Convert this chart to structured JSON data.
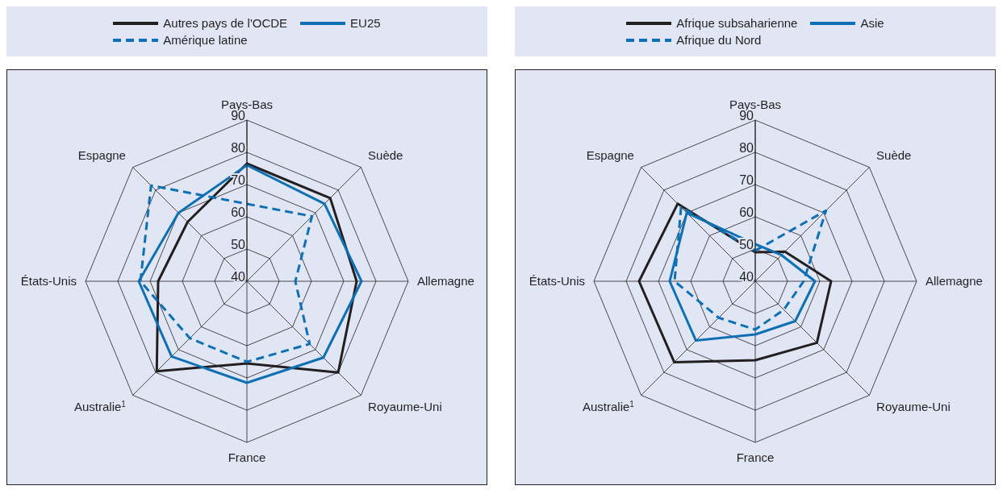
{
  "chart_data": [
    {
      "type": "radar",
      "categories": [
        "Pays-Bas",
        "Suède",
        "Allemagne",
        "Royaume-Uni",
        "France",
        "Australie$^{1}$",
        "États-Unis",
        "Espagne"
      ],
      "ylim": [
        40,
        90
      ],
      "yticks": [
        40,
        50,
        60,
        70,
        80,
        90
      ],
      "grid": true,
      "legend": "top",
      "series": [
        {
          "name": "Autres pays de l'OCDE",
          "color": "#231f20",
          "line_style": "solid",
          "values": [
            76.5,
            76.5,
            74,
            80,
            65.5,
            79.5,
            67.5,
            66
          ]
        },
        {
          "name": "EU25",
          "color": "#0f6fb5",
          "line_style": "solid",
          "values": [
            76,
            74,
            75.5,
            73.5,
            71.5,
            73,
            73.5,
            70
          ]
        },
        {
          "name": "Amérique latine",
          "color": "#0f6fb5",
          "line_style": "dashed",
          "values": [
            64,
            68.5,
            55,
            67.5,
            65,
            65,
            73,
            82
          ]
        }
      ]
    },
    {
      "type": "radar",
      "categories": [
        "Pays-Bas",
        "Suède",
        "Allemagne",
        "Royaume-Uni",
        "France",
        "Australie$^{1}$",
        "États-Unis",
        "Espagne"
      ],
      "ylim": [
        40,
        90
      ],
      "yticks": [
        40,
        50,
        60,
        70,
        80,
        90
      ],
      "grid": true,
      "legend": "top",
      "series": [
        {
          "name": "Afrique subsaharienne",
          "color": "#231f20",
          "line_style": "solid",
          "values": [
            49,
            53,
            63.5,
            67,
            64.5,
            75.5,
            76,
            74
          ]
        },
        {
          "name": "Asie",
          "color": "#0f6fb5",
          "line_style": "solid",
          "values": [
            51.5,
            51.5,
            58.5,
            57.5,
            56.5,
            66,
            66.5,
            70
          ]
        },
        {
          "name": "Afrique du Nord",
          "color": "#0f6fb5",
          "line_style": "dashed",
          "values": [
            49.5,
            71,
            55,
            52.5,
            55,
            56,
            65,
            72.5
          ]
        }
      ]
    }
  ]
}
